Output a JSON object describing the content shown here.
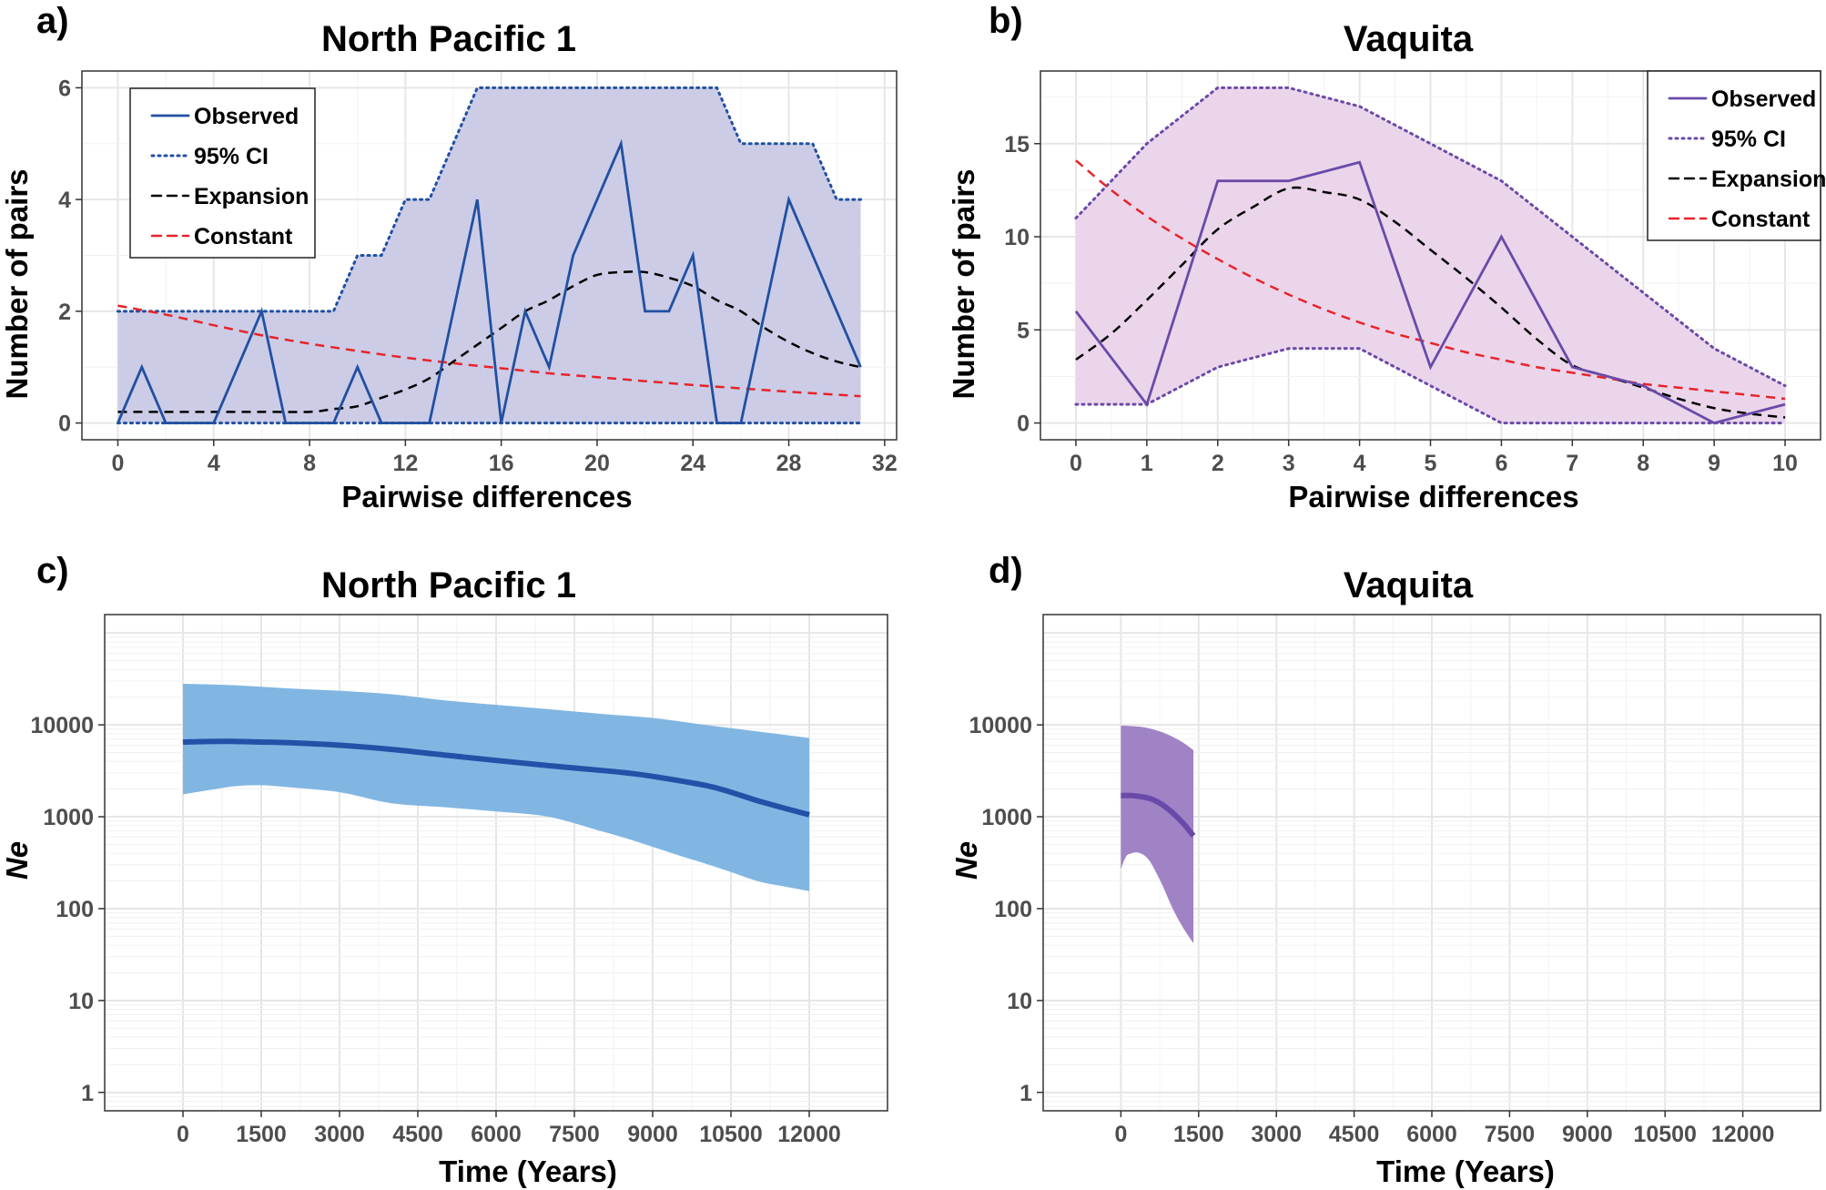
{
  "chart_data": [
    {
      "panel": "a)",
      "type": "line",
      "title": "North Pacific 1",
      "xlabel": "Pairwise differences",
      "ylabel": "Number of pairs",
      "xlim": [
        -1.5,
        32.5
      ],
      "ylim": [
        -0.3,
        6.3
      ],
      "xticks": [
        0,
        4,
        8,
        12,
        16,
        20,
        24,
        28,
        32
      ],
      "yticks": [
        0,
        2,
        4,
        6
      ],
      "grid": true,
      "legend_position": "top-left",
      "colors": {
        "observed": "#2150a0",
        "band": "#c9c9e6",
        "ci": "#2150a0",
        "expansion": "#000000",
        "constant": "#e8232a"
      },
      "legend": [
        "Observed",
        "95% CI",
        "Expansion",
        "Constant"
      ],
      "series": [
        {
          "name": "Observed",
          "x": [
            0,
            1,
            2,
            3,
            4,
            5,
            6,
            7,
            8,
            9,
            10,
            11,
            12,
            13,
            14,
            15,
            16,
            17,
            18,
            19,
            20,
            21,
            22,
            23,
            24,
            25,
            26,
            27,
            28,
            29,
            30,
            31
          ],
          "values": [
            0,
            1,
            0,
            0,
            0,
            1,
            2,
            0,
            0,
            0,
            1,
            0,
            0,
            0,
            2,
            4,
            0,
            2,
            1,
            3,
            4,
            5,
            2,
            2,
            3,
            0,
            0,
            2,
            4,
            3,
            2,
            1
          ]
        },
        {
          "name": "95% CI upper",
          "x": [
            0,
            1,
            2,
            3,
            4,
            5,
            6,
            7,
            8,
            9,
            10,
            11,
            12,
            13,
            14,
            15,
            16,
            17,
            18,
            19,
            20,
            21,
            22,
            23,
            24,
            25,
            26,
            27,
            28,
            29,
            30,
            31
          ],
          "values": [
            2,
            2,
            2,
            2,
            2,
            2,
            2,
            2,
            2,
            2,
            3,
            3,
            4,
            4,
            5,
            6,
            6,
            6,
            6,
            6,
            6,
            6,
            6,
            6,
            6,
            6,
            5,
            5,
            5,
            5,
            4,
            4
          ]
        },
        {
          "name": "95% CI lower",
          "x": [
            0,
            31
          ],
          "values": [
            0,
            0
          ]
        },
        {
          "name": "Expansion",
          "x": [
            0,
            2,
            4,
            6,
            8,
            9,
            10,
            11,
            12,
            13,
            14,
            15,
            16,
            17,
            18,
            19,
            20,
            21,
            22,
            23,
            24,
            25,
            26,
            27,
            28,
            29,
            30,
            31
          ],
          "values": [
            0.2,
            0.2,
            0.2,
            0.2,
            0.2,
            0.25,
            0.3,
            0.45,
            0.6,
            0.8,
            1.1,
            1.4,
            1.7,
            2.0,
            2.2,
            2.45,
            2.65,
            2.7,
            2.7,
            2.6,
            2.45,
            2.2,
            2.0,
            1.7,
            1.45,
            1.25,
            1.1,
            1.0
          ]
        },
        {
          "name": "Constant",
          "x": [
            0,
            2,
            4,
            6,
            8,
            10,
            12,
            14,
            16,
            18,
            20,
            22,
            24,
            26,
            28,
            31
          ],
          "values": [
            2.1,
            1.94,
            1.75,
            1.57,
            1.42,
            1.29,
            1.17,
            1.07,
            0.98,
            0.89,
            0.82,
            0.75,
            0.68,
            0.62,
            0.56,
            0.48
          ]
        }
      ]
    },
    {
      "panel": "b)",
      "type": "line",
      "title": "Vaquita",
      "xlabel": "Pairwise differences",
      "ylabel": "Number of pairs",
      "xlim": [
        -0.5,
        10.5
      ],
      "ylim": [
        -0.9,
        18.9
      ],
      "xticks": [
        0,
        1,
        2,
        3,
        4,
        5,
        6,
        7,
        8,
        9,
        10
      ],
      "yticks": [
        0,
        5,
        10,
        15
      ],
      "grid": true,
      "legend_position": "top-right",
      "colors": {
        "observed": "#6a4aa8",
        "band": "#ead3ea",
        "ci": "#6a4aa8",
        "expansion": "#000000",
        "constant": "#e8232a"
      },
      "legend": [
        "Observed",
        "95% CI",
        "Expansion",
        "Constant"
      ],
      "series": [
        {
          "name": "Observed",
          "x": [
            0,
            1,
            2,
            3,
            4,
            5,
            6,
            7,
            8,
            9,
            10
          ],
          "values": [
            6,
            1,
            13,
            13,
            14,
            3,
            10,
            3,
            2,
            0,
            1
          ]
        },
        {
          "name": "95% CI upper",
          "x": [
            0,
            1,
            2,
            3,
            4,
            5,
            6,
            7,
            8,
            9,
            10
          ],
          "values": [
            11,
            15,
            18,
            18,
            17,
            15,
            13,
            10,
            7,
            4,
            2
          ]
        },
        {
          "name": "95% CI lower",
          "x": [
            0,
            1,
            2,
            3,
            4,
            5,
            6,
            7,
            8,
            9,
            10
          ],
          "values": [
            1,
            1,
            3,
            4,
            4,
            2,
            0,
            0,
            0,
            0,
            0
          ]
        },
        {
          "name": "Expansion",
          "x": [
            0,
            0.5,
            1,
            1.5,
            2,
            2.5,
            3,
            3.5,
            4,
            4.5,
            5,
            5.5,
            6,
            6.5,
            7,
            7.5,
            8,
            8.5,
            9,
            9.5,
            10
          ],
          "values": [
            3.4,
            4.8,
            6.6,
            8.5,
            10.4,
            11.6,
            12.6,
            12.4,
            12.0,
            10.8,
            9.3,
            7.8,
            6.2,
            4.5,
            3.1,
            2.5,
            1.9,
            1.3,
            0.8,
            0.5,
            0.3
          ]
        },
        {
          "name": "Constant",
          "x": [
            0,
            0.5,
            1,
            1.5,
            2,
            2.5,
            3,
            3.5,
            4,
            4.5,
            5,
            5.5,
            6,
            6.5,
            7,
            7.5,
            8,
            8.5,
            9,
            9.5,
            10
          ],
          "values": [
            14.1,
            12.5,
            11.1,
            9.9,
            8.8,
            7.8,
            6.9,
            6.1,
            5.4,
            4.8,
            4.3,
            3.8,
            3.4,
            3.0,
            2.7,
            2.4,
            2.1,
            1.9,
            1.7,
            1.5,
            1.3
          ]
        }
      ]
    },
    {
      "panel": "c)",
      "type": "area",
      "title": "North Pacific 1",
      "xlabel": "Time (Years)",
      "ylabel": "Ne",
      "xlim": [
        -1500,
        13500
      ],
      "ylim_log10": [
        -0.2,
        5.2
      ],
      "xticks": [
        0,
        1500,
        3000,
        4500,
        6000,
        7500,
        9000,
        10500,
        12000
      ],
      "yticks": [
        1,
        10,
        100,
        1000,
        10000
      ],
      "ytick_labels": [
        "1",
        "10",
        "100",
        "1000",
        "10000"
      ],
      "grid": true,
      "colors": {
        "median": "#2251a8",
        "band": "#7ab2e0"
      },
      "series": [
        {
          "name": "median",
          "x": [
            0,
            500,
            1000,
            1500,
            2000,
            3000,
            4000,
            5000,
            6000,
            7000,
            8000,
            8500,
            9000,
            10000,
            10500,
            11000,
            11500,
            12000
          ],
          "values": [
            6500,
            6600,
            6600,
            6500,
            6400,
            6000,
            5400,
            4700,
            4100,
            3600,
            3200,
            3000,
            2750,
            2200,
            1850,
            1500,
            1250,
            1050
          ]
        },
        {
          "name": "upper",
          "x": [
            0,
            1000,
            2000,
            3000,
            4000,
            5000,
            6000,
            7000,
            8000,
            9000,
            10000,
            11000,
            12000
          ],
          "values": [
            28000,
            27000,
            25000,
            23500,
            21500,
            18500,
            16500,
            14800,
            13200,
            11900,
            10000,
            8500,
            7200
          ]
        },
        {
          "name": "lower",
          "x": [
            0,
            500,
            1000,
            1500,
            2000,
            3000,
            4000,
            5000,
            6000,
            7000,
            8000,
            8500,
            9000,
            9500,
            10000,
            10500,
            11000,
            11500,
            12000
          ],
          "values": [
            1750,
            1950,
            2150,
            2200,
            2100,
            1850,
            1400,
            1270,
            1140,
            1000,
            700,
            580,
            470,
            380,
            310,
            250,
            200,
            175,
            155
          ]
        }
      ]
    },
    {
      "panel": "d)",
      "type": "area",
      "title": "Vaquita",
      "xlabel": "Time (Years)",
      "ylabel": "Ne",
      "xlim": [
        -1500,
        13500
      ],
      "ylim_log10": [
        -0.2,
        5.2
      ],
      "xticks": [
        0,
        1500,
        3000,
        4500,
        6000,
        7500,
        9000,
        10500,
        12000
      ],
      "yticks": [
        1,
        10,
        100,
        1000,
        10000
      ],
      "ytick_labels": [
        "1",
        "10",
        "100",
        "1000",
        "10000"
      ],
      "grid": true,
      "colors": {
        "median": "#6a4aa8",
        "band": "#9b7cc2"
      },
      "series": [
        {
          "name": "median",
          "x": [
            0,
            200,
            400,
            600,
            800,
            1000,
            1200,
            1400
          ],
          "values": [
            1700,
            1700,
            1650,
            1550,
            1350,
            1100,
            850,
            620
          ]
        },
        {
          "name": "upper",
          "x": [
            0,
            200,
            400,
            600,
            800,
            1000,
            1200,
            1400
          ],
          "values": [
            9800,
            9700,
            9500,
            9000,
            8300,
            7400,
            6400,
            5300
          ]
        },
        {
          "name": "lower",
          "x": [
            0,
            100,
            200,
            300,
            400,
            500,
            600,
            800,
            1000,
            1200,
            1400
          ],
          "values": [
            270,
            370,
            400,
            410,
            395,
            360,
            300,
            180,
            100,
            62,
            42
          ]
        }
      ]
    }
  ]
}
